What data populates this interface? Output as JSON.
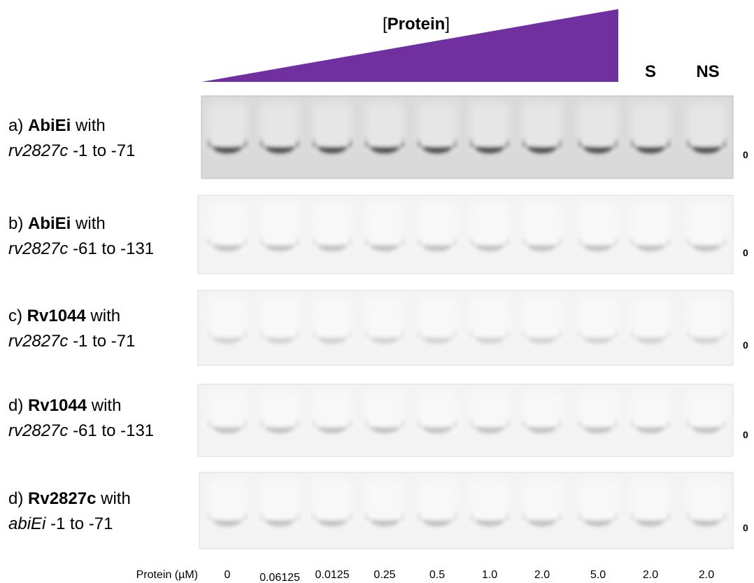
{
  "header": {
    "bracket_open": "[",
    "title": "Protein",
    "bracket_close": "]",
    "lane_labels": [
      "S",
      "NS"
    ]
  },
  "panels": [
    {
      "letter": "a)",
      "protein": "AbiEi",
      "with": "with",
      "gene": "rv2827c",
      "range": "-1 to -71",
      "marker": "0"
    },
    {
      "letter": "b)",
      "protein": "AbiEi",
      "with": "with",
      "gene": "rv2827c",
      "range": "-61 to -131",
      "marker": "0"
    },
    {
      "letter": "c)",
      "protein": "Rv1044",
      "with": "with",
      "gene": "rv2827c",
      "range": "-1 to -71",
      "marker": "0"
    },
    {
      "letter": "d)",
      "protein": "Rv1044",
      "with": "with",
      "gene": "rv2827c",
      "range": "-61 to -131",
      "marker": "0"
    },
    {
      "letter": "d)",
      "protein": "Rv2827c",
      "with": "with",
      "gene": "abiEi",
      "range": "-1 to -71",
      "marker": "0"
    }
  ],
  "footer": {
    "label": "Protein (µM)",
    "concentrations": [
      "0",
      "0.06125",
      "0.0125",
      "0.25",
      "0.5",
      "1.0",
      "2.0",
      "5.0",
      "2.0",
      "2.0"
    ]
  }
}
